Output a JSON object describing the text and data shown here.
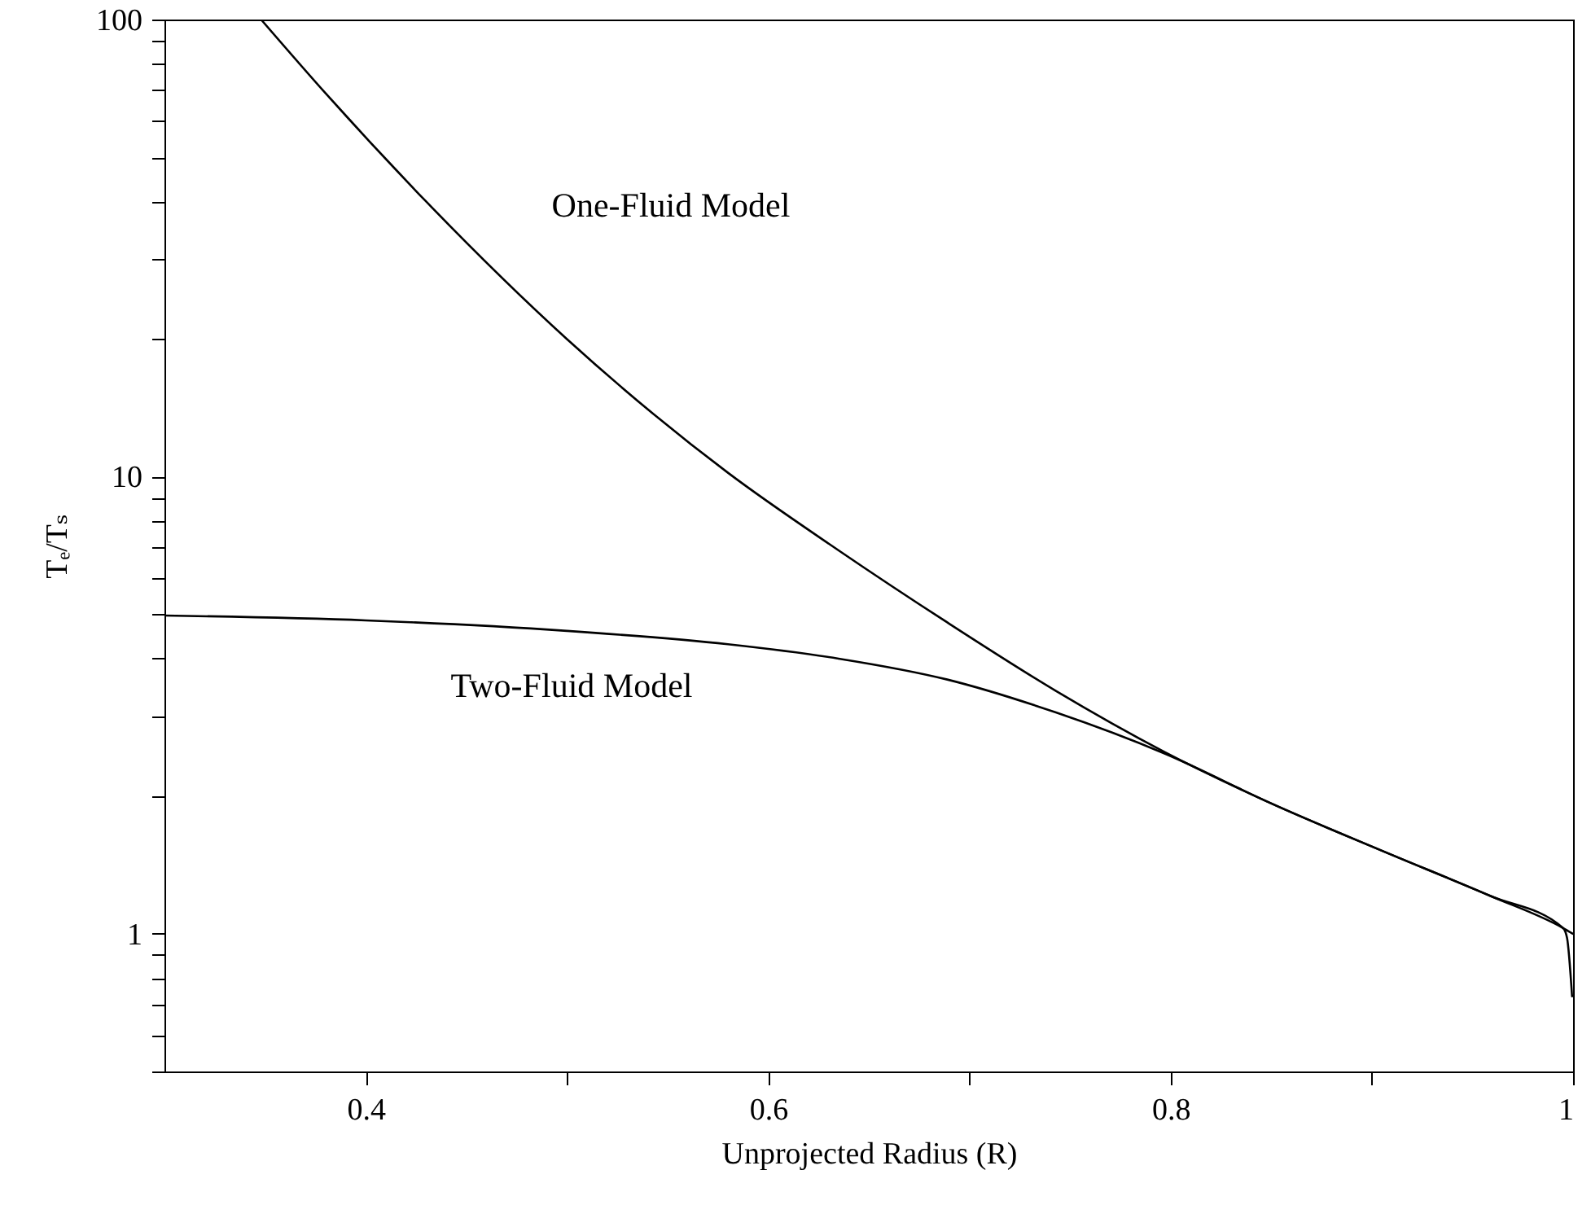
{
  "chart_data": {
    "type": "line",
    "xlabel": "Unprojected Radius (R)",
    "ylabel": "Tₑ/Tₛ",
    "log": "y",
    "xlim": [
      0.3,
      1.0
    ],
    "ylim": [
      0.5,
      100
    ],
    "xticks": [
      0.4,
      {
        "value": 0.5,
        "label": null
      },
      0.6,
      {
        "value": 0.7,
        "label": null
      },
      0.8,
      {
        "value": 0.9,
        "label": null
      },
      1
    ],
    "yticks": [
      {
        "value": 0.5,
        "label": null
      },
      {
        "value": 0.6,
        "label": null
      },
      {
        "value": 0.7,
        "label": null
      },
      {
        "value": 0.8,
        "label": null
      },
      {
        "value": 0.9,
        "label": null
      },
      1,
      {
        "value": 2,
        "label": null
      },
      {
        "value": 3,
        "label": null
      },
      {
        "value": 4,
        "label": null
      },
      {
        "value": 5,
        "label": null
      },
      {
        "value": 6,
        "label": null
      },
      {
        "value": 7,
        "label": null
      },
      {
        "value": 8,
        "label": null
      },
      {
        "value": 9,
        "label": null
      },
      10,
      {
        "value": 20,
        "label": null
      },
      {
        "value": 30,
        "label": null
      },
      {
        "value": 40,
        "label": null
      },
      {
        "value": 50,
        "label": null
      },
      {
        "value": 60,
        "label": null
      },
      {
        "value": 70,
        "label": null
      },
      {
        "value": 80,
        "label": null
      },
      {
        "value": 90,
        "label": null
      },
      100
    ],
    "series": [
      {
        "color": "#000000",
        "x": [
          0.348,
          0.38,
          0.43,
          0.5,
          0.58,
          0.635,
          0.689,
          0.743,
          0.797,
          0.851,
          0.905,
          0.959,
          0.995,
          1.0
        ],
        "values": [
          100,
          69,
          40,
          20,
          10.2,
          6.9,
          4.8,
          3.4,
          2.5,
          1.92,
          1.52,
          1.21,
          1.03,
          1.0
        ]
      },
      {
        "color": "#000000",
        "x": [
          0.3,
          0.4,
          0.5,
          0.58,
          0.635,
          0.689,
          0.743,
          0.797,
          0.851,
          0.905,
          0.959,
          0.995,
          0.997,
          0.9995
        ],
        "values": [
          4.97,
          4.85,
          4.6,
          4.3,
          4.0,
          3.6,
          3.05,
          2.48,
          1.92,
          1.52,
          1.21,
          1.03,
          0.98,
          0.73
        ]
      }
    ],
    "annotations": [
      "One-Fluid Model",
      "Two-Fluid Model"
    ]
  }
}
